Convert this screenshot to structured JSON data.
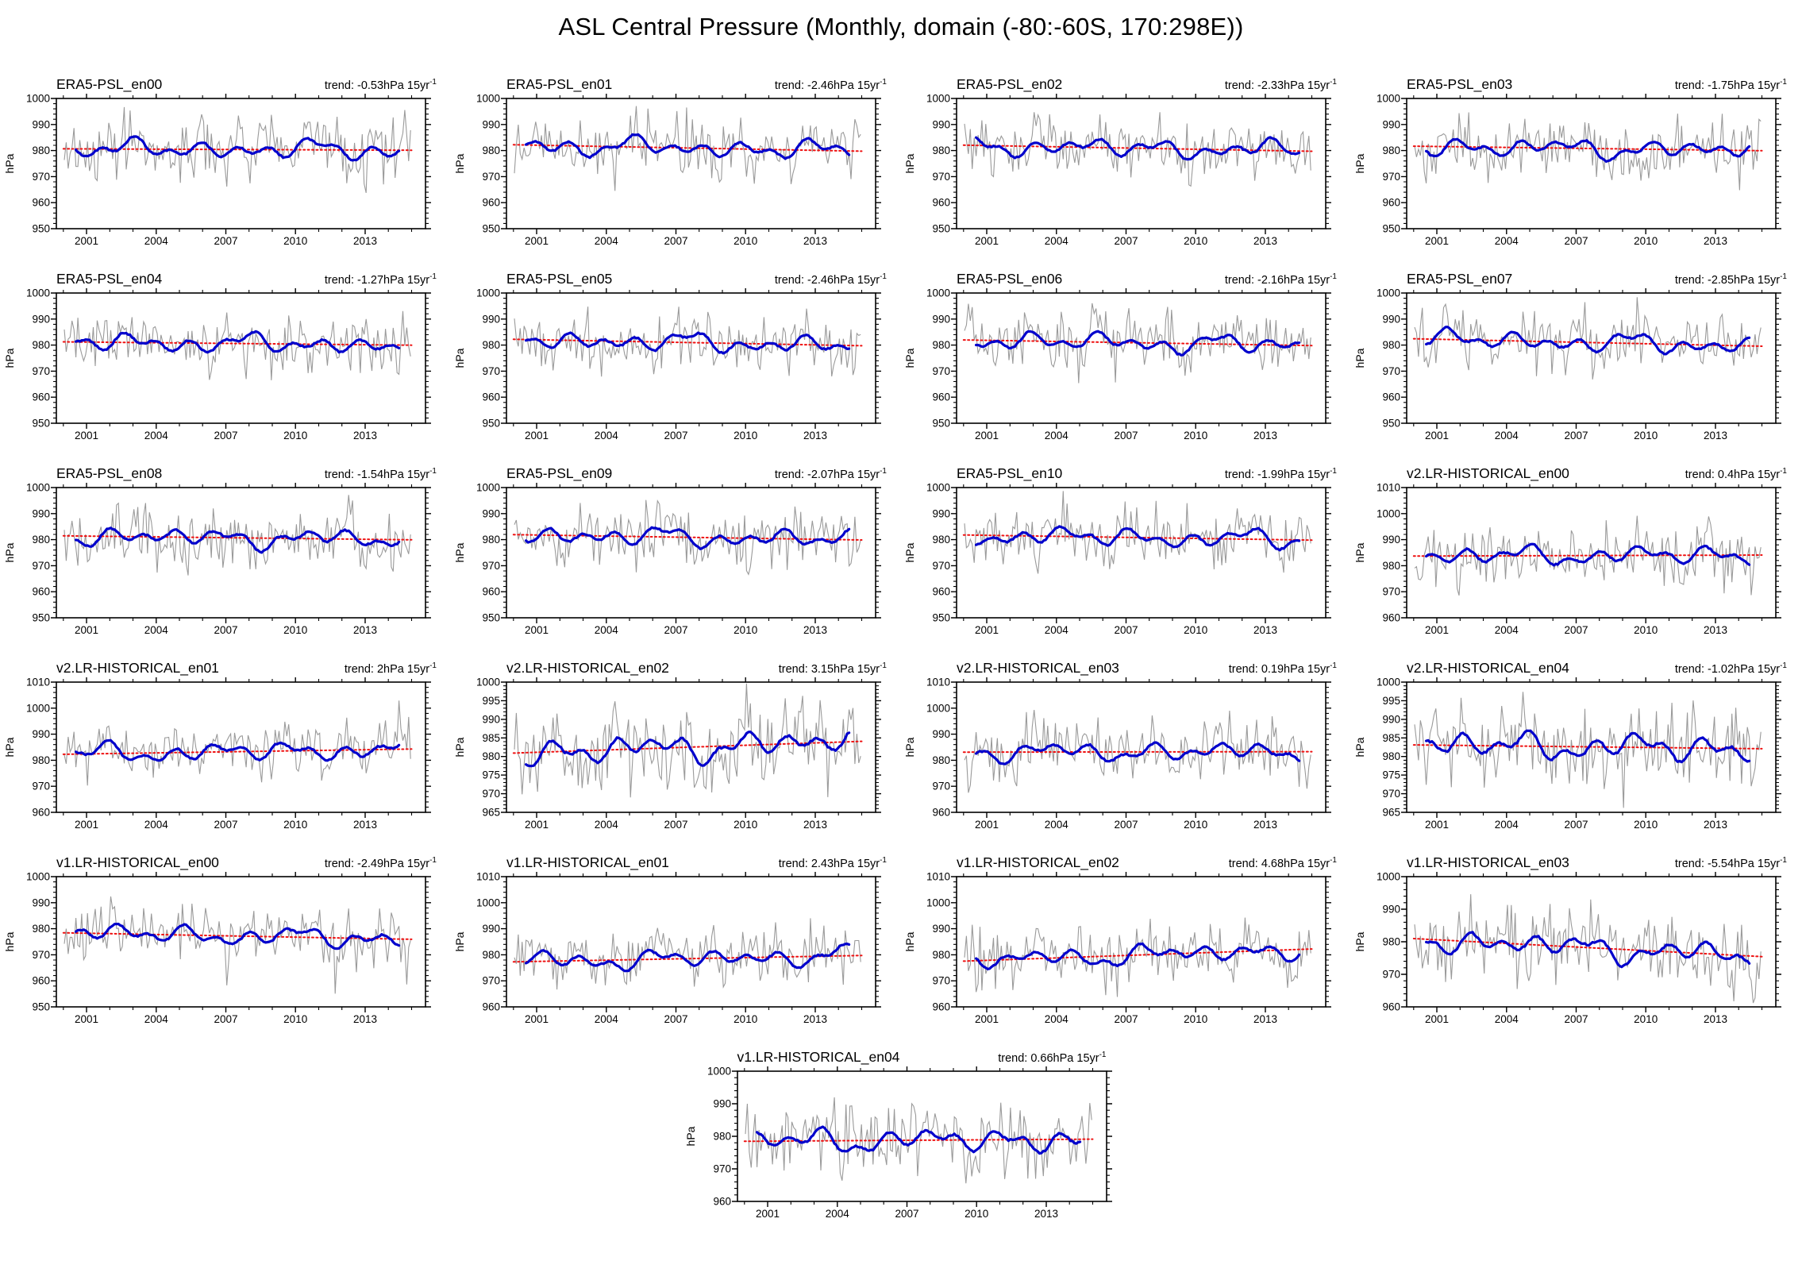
{
  "page_title": "ASL Central Pressure (Monthly, domain (-80:-60S, 170:298E))",
  "trend_prefix": "trend: ",
  "trend_unit": "hPa 15yr",
  "trend_sup": "-1",
  "colors": {
    "monthly_line": "#9a9a9a",
    "smoothed_line": "#0000cc",
    "trend_line": "#ee1111",
    "axis": "#000000",
    "background": "#ffffff"
  },
  "axes_common": {
    "ylabel": "hPa",
    "x_major_ticks": [
      2001,
      2004,
      2007,
      2010,
      2013
    ],
    "x_minor_step_years": 1,
    "x_axis_range": [
      1999.7,
      2015.6
    ],
    "data_time_range": [
      2000,
      2015
    ],
    "sampling": "monthly",
    "series_legend": [
      {
        "name": "monthly",
        "style": "thin gray line"
      },
      {
        "name": "12-month smoothed",
        "style": "thick blue line"
      },
      {
        "name": "linear trend",
        "style": "red dotted line"
      }
    ]
  },
  "chart_data": [
    {
      "type": "line",
      "title": "ERA5-PSL_en00",
      "trend_label": "-0.53",
      "trend_hpa_per_15yr": -0.53,
      "ylim": [
        950,
        1000
      ],
      "ytick_step": 10,
      "y_minor_step": 2,
      "mean_level_hpa": 980.4
    },
    {
      "type": "line",
      "title": "ERA5-PSL_en01",
      "trend_label": "-2.46",
      "trend_hpa_per_15yr": -2.46,
      "ylim": [
        950,
        1000
      ],
      "ytick_step": 10,
      "y_minor_step": 2,
      "mean_level_hpa": 981.0
    },
    {
      "type": "line",
      "title": "ERA5-PSL_en02",
      "trend_label": "-2.33",
      "trend_hpa_per_15yr": -2.33,
      "ylim": [
        950,
        1000
      ],
      "ytick_step": 10,
      "y_minor_step": 2,
      "mean_level_hpa": 980.9
    },
    {
      "type": "line",
      "title": "ERA5-PSL_en03",
      "trend_label": "-1.75",
      "trend_hpa_per_15yr": -1.75,
      "ylim": [
        950,
        1000
      ],
      "ytick_step": 10,
      "y_minor_step": 2,
      "mean_level_hpa": 980.8
    },
    {
      "type": "line",
      "title": "ERA5-PSL_en04",
      "trend_label": "-1.27",
      "trend_hpa_per_15yr": -1.27,
      "ylim": [
        950,
        1000
      ],
      "ytick_step": 10,
      "y_minor_step": 2,
      "mean_level_hpa": 980.6
    },
    {
      "type": "line",
      "title": "ERA5-PSL_en05",
      "trend_label": "-2.46",
      "trend_hpa_per_15yr": -2.46,
      "ylim": [
        950,
        1000
      ],
      "ytick_step": 10,
      "y_minor_step": 2,
      "mean_level_hpa": 981.0
    },
    {
      "type": "line",
      "title": "ERA5-PSL_en06",
      "trend_label": "-2.16",
      "trend_hpa_per_15yr": -2.16,
      "ylim": [
        950,
        1000
      ],
      "ytick_step": 10,
      "y_minor_step": 2,
      "mean_level_hpa": 980.9
    },
    {
      "type": "line",
      "title": "ERA5-PSL_en07",
      "trend_label": "-2.85",
      "trend_hpa_per_15yr": -2.85,
      "ylim": [
        950,
        1000
      ],
      "ytick_step": 10,
      "y_minor_step": 2,
      "mean_level_hpa": 981.0
    },
    {
      "type": "line",
      "title": "ERA5-PSL_en08",
      "trend_label": "-1.54",
      "trend_hpa_per_15yr": -1.54,
      "ylim": [
        950,
        1000
      ],
      "ytick_step": 10,
      "y_minor_step": 2,
      "mean_level_hpa": 980.7
    },
    {
      "type": "line",
      "title": "ERA5-PSL_en09",
      "trend_label": "-2.07",
      "trend_hpa_per_15yr": -2.07,
      "ylim": [
        950,
        1000
      ],
      "ytick_step": 10,
      "y_minor_step": 2,
      "mean_level_hpa": 980.9
    },
    {
      "type": "line",
      "title": "ERA5-PSL_en10",
      "trend_label": "-1.99",
      "trend_hpa_per_15yr": -1.99,
      "ylim": [
        950,
        1000
      ],
      "ytick_step": 10,
      "y_minor_step": 2,
      "mean_level_hpa": 980.8
    },
    {
      "type": "line",
      "title": "v2.LR-HISTORICAL_en00",
      "trend_label": "0.4",
      "trend_hpa_per_15yr": 0.4,
      "ylim": [
        960,
        1010
      ],
      "ytick_step": 10,
      "y_minor_step": 2,
      "mean_level_hpa": 983.9
    },
    {
      "type": "line",
      "title": "v2.LR-HISTORICAL_en01",
      "trend_label": "2",
      "trend_hpa_per_15yr": 2,
      "ylim": [
        960,
        1010
      ],
      "ytick_step": 10,
      "y_minor_step": 2,
      "mean_level_hpa": 983.3
    },
    {
      "type": "line",
      "title": "v2.LR-HISTORICAL_en02",
      "trend_label": "3.15",
      "trend_hpa_per_15yr": 3.15,
      "ylim": [
        965,
        1000
      ],
      "ytick_step": 5,
      "y_minor_step": 1,
      "mean_level_hpa": 982.5
    },
    {
      "type": "line",
      "title": "v2.LR-HISTORICAL_en03",
      "trend_label": "0.19",
      "trend_hpa_per_15yr": 0.19,
      "ylim": [
        960,
        1010
      ],
      "ytick_step": 10,
      "y_minor_step": 2,
      "mean_level_hpa": 983.2
    },
    {
      "type": "line",
      "title": "v2.LR-HISTORICAL_en04",
      "trend_label": "-1.02",
      "trend_hpa_per_15yr": -1.02,
      "ylim": [
        965,
        1000
      ],
      "ytick_step": 5,
      "y_minor_step": 1,
      "mean_level_hpa": 982.6
    },
    {
      "type": "line",
      "title": "v1.LR-HISTORICAL_en00",
      "trend_label": "-2.49",
      "trend_hpa_per_15yr": -2.49,
      "ylim": [
        950,
        1000
      ],
      "ytick_step": 10,
      "y_minor_step": 2,
      "mean_level_hpa": 977.2
    },
    {
      "type": "line",
      "title": "v1.LR-HISTORICAL_en01",
      "trend_label": "2.43",
      "trend_hpa_per_15yr": 2.43,
      "ylim": [
        960,
        1010
      ],
      "ytick_step": 10,
      "y_minor_step": 2,
      "mean_level_hpa": 978.5
    },
    {
      "type": "line",
      "title": "v1.LR-HISTORICAL_en02",
      "trend_label": "4.68",
      "trend_hpa_per_15yr": 4.68,
      "ylim": [
        960,
        1010
      ],
      "ytick_step": 10,
      "y_minor_step": 2,
      "mean_level_hpa": 979.9
    },
    {
      "type": "line",
      "title": "v1.LR-HISTORICAL_en03",
      "trend_label": "-5.54",
      "trend_hpa_per_15yr": -5.54,
      "ylim": [
        960,
        1000
      ],
      "ytick_step": 10,
      "y_minor_step": 2,
      "mean_level_hpa": 978.2
    },
    {
      "type": "line",
      "title": "v1.LR-HISTORICAL_en04",
      "trend_label": "0.66",
      "trend_hpa_per_15yr": 0.66,
      "ylim": [
        960,
        1000
      ],
      "ytick_step": 10,
      "y_minor_step": 2,
      "mean_level_hpa": 978.8
    }
  ]
}
